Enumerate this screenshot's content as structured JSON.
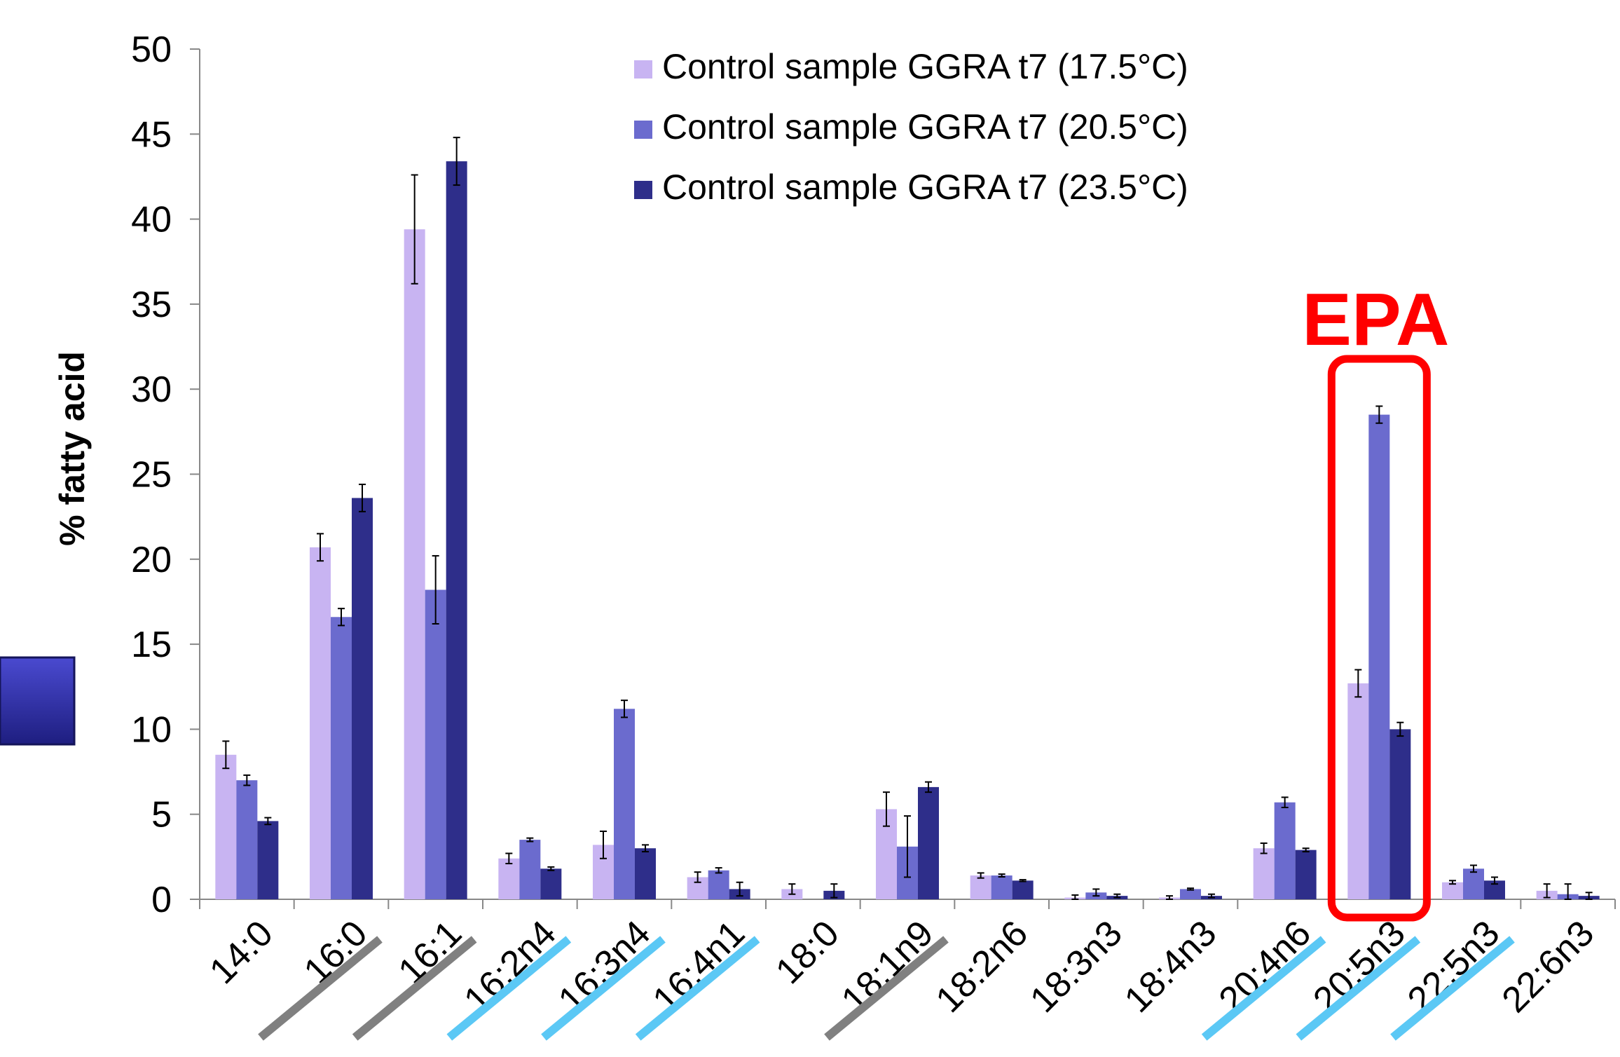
{
  "chart_data": {
    "type": "bar",
    "title": "",
    "xlabel": "",
    "ylabel": "% fatty acid",
    "ylim": [
      0,
      50
    ],
    "yticks": [
      0,
      5,
      10,
      15,
      20,
      25,
      30,
      35,
      40,
      45,
      50
    ],
    "grid": false,
    "legend_position": "top-right",
    "categories": [
      "14:0",
      "16:0",
      "16:1",
      "16:2n4",
      "16:3n4",
      "16:4n1",
      "18:0",
      "18:1n9",
      "18:2n6",
      "18:3n3",
      "18:4n3",
      "20:4n6",
      "20:5n3",
      "22:5n3",
      "22:6n3"
    ],
    "series": [
      {
        "name": "Control sample GGRA t7 (17.5°C)",
        "color": "#c8b4f2",
        "values": [
          8.5,
          20.7,
          39.4,
          2.4,
          3.2,
          1.3,
          0.6,
          5.3,
          1.4,
          0.1,
          0.1,
          3.0,
          12.7,
          1.0,
          0.5
        ],
        "errors": [
          0.8,
          0.8,
          3.2,
          0.3,
          0.8,
          0.3,
          0.3,
          1.0,
          0.15,
          0.15,
          0.1,
          0.3,
          0.8,
          0.1,
          0.4
        ]
      },
      {
        "name": "Control sample GGRA t7 (20.5°C)",
        "color": "#6b6bce",
        "values": [
          7.0,
          16.6,
          18.2,
          3.5,
          11.2,
          1.7,
          0.0,
          3.1,
          1.4,
          0.4,
          0.6,
          5.7,
          28.5,
          1.8,
          0.3
        ],
        "errors": [
          0.3,
          0.5,
          2.0,
          0.1,
          0.5,
          0.15,
          0.0,
          1.8,
          0.08,
          0.2,
          0.05,
          0.3,
          0.5,
          0.2,
          0.6
        ]
      },
      {
        "name": "Control sample GGRA t7 (23.5°C)",
        "color": "#2e2e8a",
        "values": [
          4.6,
          23.6,
          43.4,
          1.8,
          3.0,
          0.6,
          0.5,
          6.6,
          1.1,
          0.2,
          0.2,
          2.9,
          10.0,
          1.1,
          0.2
        ],
        "errors": [
          0.2,
          0.8,
          1.4,
          0.1,
          0.2,
          0.4,
          0.4,
          0.3,
          0.05,
          0.1,
          0.1,
          0.1,
          0.4,
          0.2,
          0.2
        ]
      }
    ],
    "category_underlines": [
      "none",
      "gray",
      "gray",
      "blue",
      "blue",
      "blue",
      "none",
      "gray",
      "none",
      "none",
      "none",
      "blue",
      "blue",
      "blue",
      "none"
    ],
    "underline_colors": {
      "gray": "#808080",
      "blue": "#5bc8f5"
    },
    "annotation": {
      "text": "EPA",
      "color": "#ff0000",
      "target_category": "20:5n3"
    },
    "decoration_color": "#2e2e9e"
  }
}
